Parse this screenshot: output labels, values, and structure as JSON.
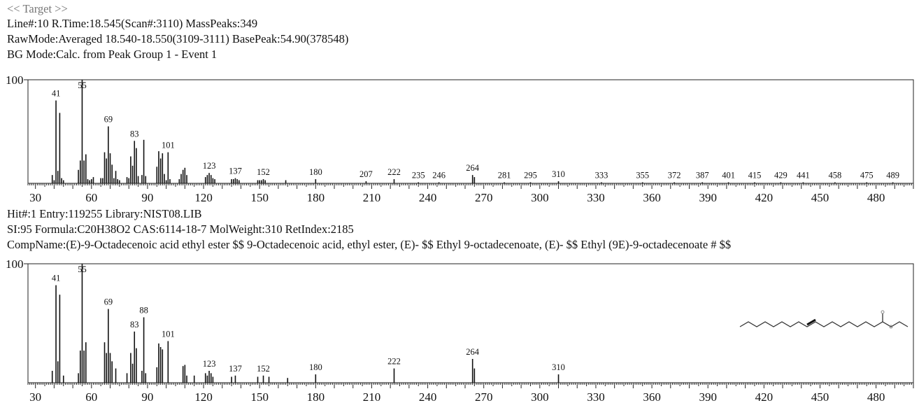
{
  "header": {
    "target": "<< Target >>",
    "line1": "Line#:10   R.Time:18.545(Scan#:3110)   MassPeaks:349",
    "line2": "RawMode:Averaged 18.540-18.550(3109-3111) BasePeak:54.90(378548)",
    "line3": "BG Mode:Calc. from Peak  Group 1 - Event 1"
  },
  "hit": {
    "line1": "Hit#:1  Entry:119255  Library:NIST08.LIB",
    "line2": "SI:95  Formula:C20H38O2  CAS:6114-18-7  MolWeight:310  RetIndex:2185",
    "line3": "CompName:(E)-9-Octadecenoic acid ethyl ester $$ 9-Octadecenoic acid, ethyl ester, (E)- $$ Ethyl 9-octadecenoate, (E)- $$ Ethyl (9E)-9-octadecenoate # $$"
  },
  "chart_data": [
    {
      "type": "bar",
      "name": "target-spectrum",
      "xlim": [
        26,
        500
      ],
      "ylim": [
        0,
        100
      ],
      "y_tick": "100",
      "x_ticks": [
        30,
        60,
        90,
        120,
        150,
        180,
        210,
        240,
        270,
        300,
        330,
        360,
        390,
        420,
        450,
        480
      ],
      "peaks": [
        [
          39,
          8
        ],
        [
          40,
          3
        ],
        [
          41,
          80
        ],
        [
          42,
          12
        ],
        [
          43,
          68
        ],
        [
          44,
          5
        ],
        [
          45,
          3
        ],
        [
          53,
          13
        ],
        [
          54,
          22
        ],
        [
          55,
          100
        ],
        [
          56,
          22
        ],
        [
          57,
          28
        ],
        [
          58,
          4
        ],
        [
          59,
          3
        ],
        [
          60,
          4
        ],
        [
          61,
          6
        ],
        [
          65,
          5
        ],
        [
          66,
          5
        ],
        [
          67,
          30
        ],
        [
          68,
          24
        ],
        [
          69,
          55
        ],
        [
          70,
          29
        ],
        [
          71,
          18
        ],
        [
          72,
          5
        ],
        [
          73,
          12
        ],
        [
          74,
          4
        ],
        [
          75,
          3
        ],
        [
          79,
          6
        ],
        [
          80,
          5
        ],
        [
          81,
          26
        ],
        [
          82,
          17
        ],
        [
          83,
          41
        ],
        [
          84,
          34
        ],
        [
          85,
          7
        ],
        [
          87,
          8
        ],
        [
          88,
          42
        ],
        [
          89,
          7
        ],
        [
          95,
          16
        ],
        [
          96,
          31
        ],
        [
          97,
          24
        ],
        [
          98,
          29
        ],
        [
          99,
          9
        ],
        [
          100,
          3
        ],
        [
          101,
          30
        ],
        [
          102,
          4
        ],
        [
          107,
          4
        ],
        [
          108,
          9
        ],
        [
          109,
          13
        ],
        [
          110,
          15
        ],
        [
          111,
          8
        ],
        [
          121,
          6
        ],
        [
          122,
          8
        ],
        [
          123,
          10
        ],
        [
          124,
          8
        ],
        [
          125,
          5
        ],
        [
          126,
          4
        ],
        [
          135,
          4
        ],
        [
          136,
          4
        ],
        [
          137,
          5
        ],
        [
          138,
          4
        ],
        [
          139,
          3
        ],
        [
          149,
          3
        ],
        [
          150,
          3
        ],
        [
          151,
          3
        ],
        [
          152,
          4
        ],
        [
          153,
          3
        ],
        [
          164,
          3
        ],
        [
          180,
          4
        ],
        [
          207,
          2
        ],
        [
          222,
          4
        ],
        [
          235,
          1
        ],
        [
          246,
          1
        ],
        [
          264,
          8
        ],
        [
          265,
          6
        ],
        [
          281,
          1
        ],
        [
          295,
          1
        ],
        [
          310,
          2
        ],
        [
          333,
          1
        ],
        [
          355,
          1
        ],
        [
          372,
          1
        ],
        [
          387,
          1
        ],
        [
          401,
          1
        ],
        [
          415,
          1
        ],
        [
          429,
          1
        ],
        [
          441,
          1
        ],
        [
          458,
          1
        ],
        [
          475,
          1
        ],
        [
          489,
          1
        ]
      ],
      "labels": [
        {
          "mz": 41,
          "text": "41"
        },
        {
          "mz": 55,
          "text": "55"
        },
        {
          "mz": 69,
          "text": "69"
        },
        {
          "mz": 83,
          "text": "83"
        },
        {
          "mz": 101,
          "text": "101"
        },
        {
          "mz": 123,
          "text": "123"
        },
        {
          "mz": 137,
          "text": "137"
        },
        {
          "mz": 152,
          "text": "152"
        },
        {
          "mz": 180,
          "text": "180"
        },
        {
          "mz": 207,
          "text": "207"
        },
        {
          "mz": 222,
          "text": "222"
        },
        {
          "mz": 235,
          "text": "235"
        },
        {
          "mz": 246,
          "text": "246"
        },
        {
          "mz": 264,
          "text": "264"
        },
        {
          "mz": 281,
          "text": "281"
        },
        {
          "mz": 295,
          "text": "295"
        },
        {
          "mz": 310,
          "text": "310"
        },
        {
          "mz": 333,
          "text": "333"
        },
        {
          "mz": 355,
          "text": "355"
        },
        {
          "mz": 372,
          "text": "372"
        },
        {
          "mz": 387,
          "text": "387"
        },
        {
          "mz": 401,
          "text": "401"
        },
        {
          "mz": 415,
          "text": "415"
        },
        {
          "mz": 429,
          "text": "429"
        },
        {
          "mz": 441,
          "text": "441"
        },
        {
          "mz": 458,
          "text": "458"
        },
        {
          "mz": 475,
          "text": "475"
        },
        {
          "mz": 489,
          "text": "489"
        }
      ]
    },
    {
      "type": "bar",
      "name": "library-spectrum",
      "xlim": [
        26,
        500
      ],
      "ylim": [
        0,
        100
      ],
      "y_tick": "100",
      "x_ticks": [
        30,
        60,
        90,
        120,
        150,
        180,
        210,
        240,
        270,
        300,
        330,
        360,
        390,
        420,
        450,
        480
      ],
      "peaks": [
        [
          39,
          10
        ],
        [
          41,
          82
        ],
        [
          42,
          18
        ],
        [
          43,
          74
        ],
        [
          45,
          6
        ],
        [
          53,
          8
        ],
        [
          54,
          27
        ],
        [
          55,
          100
        ],
        [
          56,
          27
        ],
        [
          57,
          34
        ],
        [
          67,
          34
        ],
        [
          68,
          25
        ],
        [
          69,
          62
        ],
        [
          70,
          25
        ],
        [
          71,
          18
        ],
        [
          73,
          12
        ],
        [
          79,
          8
        ],
        [
          81,
          25
        ],
        [
          82,
          16
        ],
        [
          83,
          43
        ],
        [
          84,
          29
        ],
        [
          87,
          10
        ],
        [
          88,
          55
        ],
        [
          89,
          8
        ],
        [
          95,
          13
        ],
        [
          96,
          33
        ],
        [
          97,
          30
        ],
        [
          98,
          28
        ],
        [
          101,
          35
        ],
        [
          109,
          14
        ],
        [
          110,
          15
        ],
        [
          111,
          6
        ],
        [
          115,
          6
        ],
        [
          121,
          8
        ],
        [
          122,
          6
        ],
        [
          123,
          10
        ],
        [
          124,
          8
        ],
        [
          125,
          5
        ],
        [
          135,
          5
        ],
        [
          137,
          6
        ],
        [
          149,
          5
        ],
        [
          152,
          6
        ],
        [
          155,
          5
        ],
        [
          165,
          4
        ],
        [
          180,
          7
        ],
        [
          222,
          12
        ],
        [
          264,
          20
        ],
        [
          265,
          12
        ],
        [
          310,
          7
        ]
      ],
      "labels": [
        {
          "mz": 41,
          "text": "41"
        },
        {
          "mz": 55,
          "text": "55"
        },
        {
          "mz": 69,
          "text": "69"
        },
        {
          "mz": 83,
          "text": "83"
        },
        {
          "mz": 88,
          "text": "88"
        },
        {
          "mz": 101,
          "text": "101"
        },
        {
          "mz": 123,
          "text": "123"
        },
        {
          "mz": 137,
          "text": "137"
        },
        {
          "mz": 152,
          "text": "152"
        },
        {
          "mz": 180,
          "text": "180"
        },
        {
          "mz": 222,
          "text": "222"
        },
        {
          "mz": 264,
          "text": "264"
        },
        {
          "mz": 310,
          "text": "310"
        }
      ]
    }
  ]
}
